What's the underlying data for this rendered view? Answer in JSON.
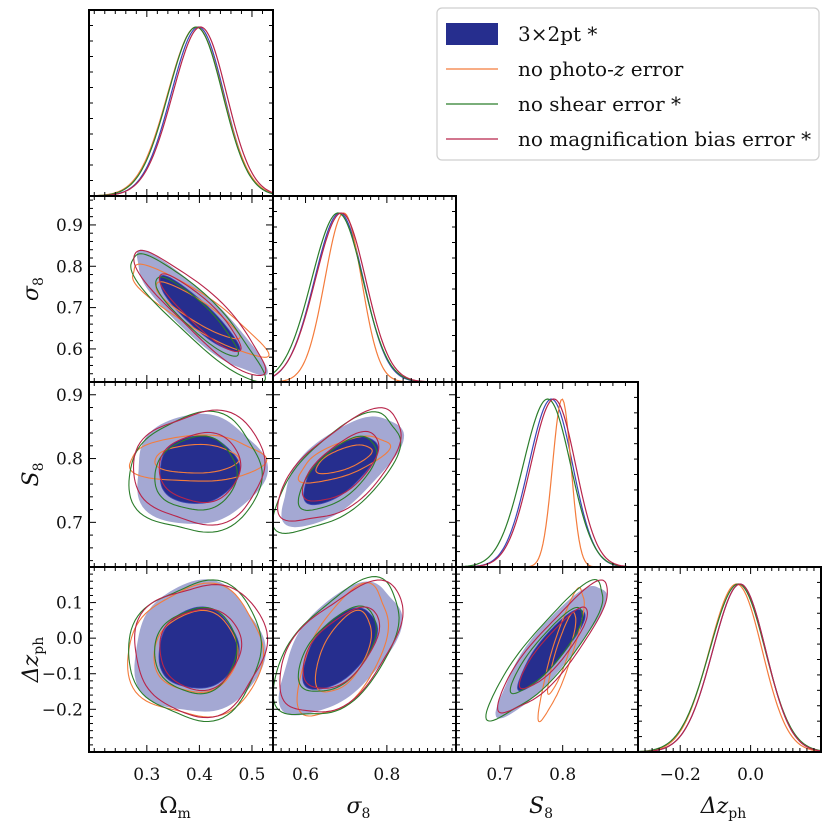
{
  "chart_data": {
    "type": "corner-plot",
    "parameters": [
      {
        "id": "Om",
        "label": "Ω",
        "sub": "m",
        "range": [
          0.19,
          0.54
        ],
        "ticks": [
          0.3,
          0.4,
          0.5
        ],
        "tick_labels": [
          "0.3",
          "0.4",
          "0.5"
        ],
        "mean": 0.398,
        "sigma": 0.05
      },
      {
        "id": "s8",
        "label": "σ",
        "sub": "8",
        "range": [
          0.52,
          0.97
        ],
        "ticks": [
          0.6,
          0.8
        ],
        "tick_labels": [
          "0.6",
          "0.8"
        ],
        "row_ticks": [
          0.6,
          0.7,
          0.8,
          0.9
        ],
        "row_tick_labels": [
          "0.6",
          "0.7",
          "0.8",
          "0.9"
        ],
        "mean": 0.684,
        "sigma": 0.06
      },
      {
        "id": "S8",
        "label": "S",
        "sub": "8",
        "range": [
          0.63,
          0.92
        ],
        "ticks": [
          0.7,
          0.8
        ],
        "tick_labels": [
          "0.7",
          "0.8"
        ],
        "row_ticks": [
          0.7,
          0.8,
          0.9
        ],
        "row_tick_labels": [
          "0.7",
          "0.8",
          "0.9"
        ],
        "mean": 0.782,
        "sigma": 0.035
      },
      {
        "id": "dz",
        "label": "Δz",
        "sub": "ph",
        "range": [
          -0.32,
          0.2
        ],
        "ticks": [
          -0.2,
          0.0
        ],
        "tick_labels": [
          "−0.2",
          "0.0"
        ],
        "row_ticks": [
          -0.2,
          -0.1,
          0.0,
          0.1
        ],
        "row_tick_labels": [
          "−0.2",
          "−0.1",
          "0.0",
          "0.1"
        ],
        "mean": -0.03,
        "sigma": 0.075
      }
    ],
    "correlations": {
      "s8|Om": -0.9,
      "S8|Om": 0.05,
      "S8|s8": 0.65,
      "dz|Om": 0.05,
      "dz|s8": 0.55,
      "dz|S8": 0.88
    },
    "series": [
      {
        "name": "3×2pt *",
        "style": "filled",
        "fill_inner": "#262e8e",
        "fill_outer": "#a4a8d3",
        "line": "#3b47b8",
        "offsets": [
          0,
          0,
          0,
          0
        ],
        "scale": [
          1,
          1,
          1,
          1
        ]
      },
      {
        "name": "no photo-z error",
        "legend_parts": [
          "no photo-",
          "z",
          " error"
        ],
        "style": "line",
        "line": "#f47c3c",
        "offsets": [
          -0.004,
          0.01,
          0.017,
          -0.01
        ],
        "scale": [
          1.05,
          0.75,
          0.42,
          1.0
        ]
      },
      {
        "name": "no shear error *",
        "style": "line",
        "line": "#2b7d2b",
        "offsets": [
          -0.004,
          -0.004,
          -0.006,
          -0.005
        ],
        "scale": [
          1.03,
          1.05,
          1.08,
          1.05
        ]
      },
      {
        "name": "no magnification bias error *",
        "style": "line",
        "line": "#b8254a",
        "offsets": [
          0.004,
          0.004,
          0.004,
          0.0
        ],
        "scale": [
          1.02,
          1.03,
          1.02,
          1.0
        ]
      }
    ],
    "legend_position": "top-right",
    "grid": false
  }
}
